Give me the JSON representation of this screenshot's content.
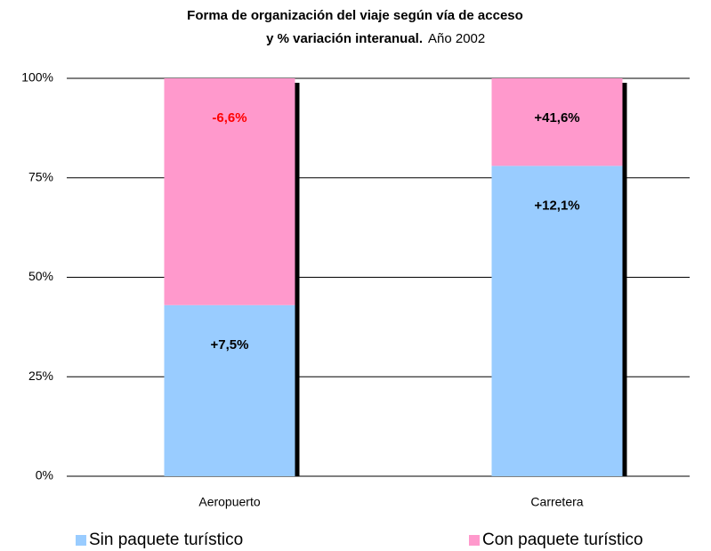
{
  "chart_data": {
    "type": "stacked_bar",
    "title": [
      "Forma de organización del viaje según vía de acceso",
      "y % variación interanual."
    ],
    "subtitle": "Año 2002",
    "categories": [
      "Aeropuerto",
      "Carretera"
    ],
    "series": [
      {
        "name": "Sin paquete turístico",
        "color": "#99ccff",
        "values": [
          43,
          78
        ],
        "annotations": [
          "+7,5%",
          "+12,1%"
        ],
        "annotation_colors": [
          "#000000",
          "#000000"
        ]
      },
      {
        "name": "Con paquete turístico",
        "color": "#ff99cc",
        "values": [
          57,
          22
        ],
        "annotations": [
          "-6,6%",
          "+41,6%"
        ],
        "annotation_colors": [
          "#ff0000",
          "#000000"
        ]
      }
    ],
    "ylim": [
      0,
      100
    ],
    "yticks": [
      {
        "value": 0,
        "label": "0%"
      },
      {
        "value": 25,
        "label": "25%"
      },
      {
        "value": 50,
        "label": "50%"
      },
      {
        "value": 75,
        "label": "75%"
      },
      {
        "value": 100,
        "label": "100%"
      }
    ],
    "grid": true,
    "legend": "bottom"
  }
}
